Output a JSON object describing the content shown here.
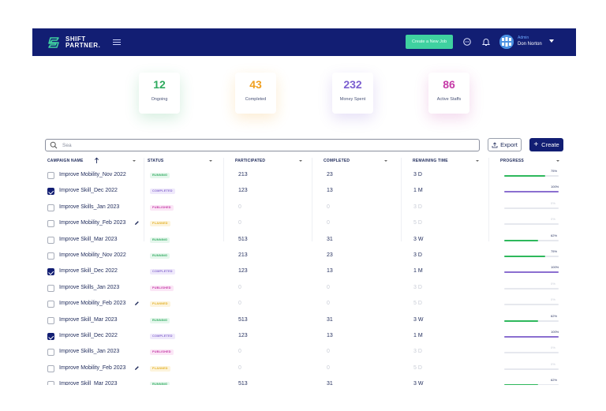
{
  "header": {
    "logo_line1": "SHIFT",
    "logo_line2": "PARTNER.",
    "cta_label": "Create a New Job",
    "user_role": "Admin",
    "user_name": "Don Norton",
    "brand_color": "#121e73",
    "accent_color": "#3fd1a0"
  },
  "stats": [
    {
      "value": "12",
      "label": "Ongoing",
      "color": "#2eaa5e"
    },
    {
      "value": "43",
      "label": "Completed",
      "color": "#f0a020"
    },
    {
      "value": "232",
      "label": "Money Spent",
      "color": "#7b5fd0"
    },
    {
      "value": "86",
      "label": "Active Staffs",
      "color": "#c53aa7"
    }
  ],
  "toolbar": {
    "search_value": "Sea",
    "export_label": "Export",
    "create_label": "Create"
  },
  "table": {
    "columns": [
      "CAMPAIGN NAME",
      "STATUS",
      "PARTICIPATED",
      "COMPLETED",
      "REMAINING TIME",
      "PROGRESS"
    ],
    "rows": [
      {
        "name": "Improve Mobility_Nov 2022",
        "checked": false,
        "edit": false,
        "status": "RUNNING",
        "participated": "213",
        "completed": "23",
        "remaining": "3 D",
        "progress": 75,
        "pct": "75%"
      },
      {
        "name": "Improve Skill_Dec 2022",
        "checked": true,
        "edit": false,
        "status": "COMPLETED",
        "participated": "123",
        "completed": "13",
        "remaining": "1 M",
        "progress": 100,
        "pct": "100%"
      },
      {
        "name": "Improve Skills_Jan 2023",
        "checked": false,
        "edit": false,
        "status": "PUBLISHED",
        "participated": "0",
        "completed": "0",
        "remaining": "3 D",
        "progress": 0,
        "pct": "0%"
      },
      {
        "name": "Improve Mobility_Feb 2023",
        "checked": false,
        "edit": true,
        "status": "PLANNED",
        "participated": "0",
        "completed": "0",
        "remaining": "5 D",
        "progress": 0,
        "pct": "0%"
      },
      {
        "name": "Improve Skill_Mar 2023",
        "checked": false,
        "edit": false,
        "status": "RUNNING",
        "participated": "513",
        "completed": "31",
        "remaining": "3 W",
        "progress": 62,
        "pct": "62%"
      },
      {
        "name": "Improve Mobility_Nov 2022",
        "checked": false,
        "edit": false,
        "status": "RUNNING",
        "participated": "213",
        "completed": "23",
        "remaining": "3 D",
        "progress": 75,
        "pct": "75%"
      },
      {
        "name": "Improve Skill_Dec 2022",
        "checked": true,
        "edit": false,
        "status": "COMPLETED",
        "participated": "123",
        "completed": "13",
        "remaining": "1 M",
        "progress": 100,
        "pct": "100%"
      },
      {
        "name": "Improve Skills_Jan 2023",
        "checked": false,
        "edit": false,
        "status": "PUBLISHED",
        "participated": "0",
        "completed": "0",
        "remaining": "3 D",
        "progress": 0,
        "pct": "0%"
      },
      {
        "name": "Improve Mobility_Feb 2023",
        "checked": false,
        "edit": true,
        "status": "PLANNED",
        "participated": "0",
        "completed": "0",
        "remaining": "5 D",
        "progress": 0,
        "pct": "0%"
      },
      {
        "name": "Improve Skill_Mar 2023",
        "checked": false,
        "edit": false,
        "status": "RUNNING",
        "participated": "513",
        "completed": "31",
        "remaining": "3 W",
        "progress": 62,
        "pct": "62%"
      },
      {
        "name": "Improve Skill_Dec 2022",
        "checked": true,
        "edit": false,
        "status": "COMPLETED",
        "participated": "123",
        "completed": "13",
        "remaining": "1 M",
        "progress": 100,
        "pct": "100%"
      },
      {
        "name": "Improve Skills_Jan 2023",
        "checked": false,
        "edit": false,
        "status": "PUBLISHED",
        "participated": "0",
        "completed": "0",
        "remaining": "3 D",
        "progress": 0,
        "pct": "0%"
      },
      {
        "name": "Improve Mobility_Feb 2023",
        "checked": false,
        "edit": true,
        "status": "PLANNED",
        "participated": "0",
        "completed": "0",
        "remaining": "5 D",
        "progress": 0,
        "pct": "0%"
      },
      {
        "name": "Improve Skill_Mar 2023",
        "checked": false,
        "edit": false,
        "status": "RUNNING",
        "participated": "513",
        "completed": "31",
        "remaining": "3 W",
        "progress": 62,
        "pct": "62%"
      }
    ]
  }
}
